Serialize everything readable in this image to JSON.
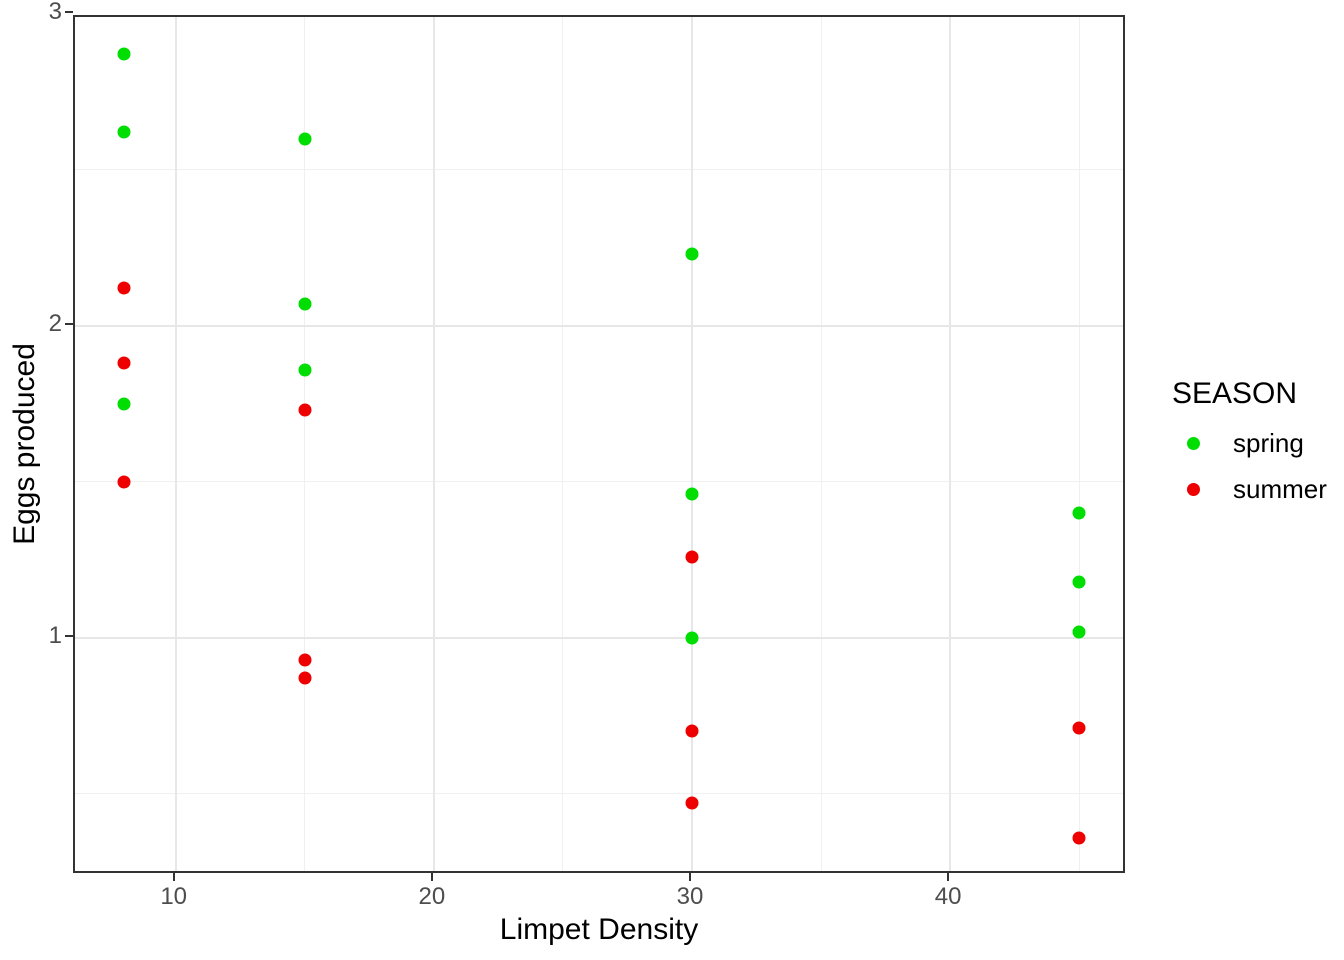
{
  "chart_data": {
    "type": "scatter",
    "title": "",
    "xlabel": "Limpet Density",
    "ylabel": "Eggs produced",
    "xlim": [
      6.1,
      46.85
    ],
    "ylim": [
      0.24,
      2.99
    ],
    "x_major_ticks": [
      10,
      20,
      30,
      40
    ],
    "x_minor_gridlines": [
      15,
      25,
      35,
      45
    ],
    "y_major_ticks": [
      1,
      2,
      3
    ],
    "y_minor_gridlines": [
      0.5,
      1.5,
      2.5
    ],
    "grid": true,
    "legend": {
      "title": "SEASON",
      "position": "right",
      "entries": [
        {
          "label": "spring",
          "color": "#00DD00"
        },
        {
          "label": "summer",
          "color": "#EE0000"
        }
      ]
    },
    "series": [
      {
        "name": "spring",
        "color": "#00DD00",
        "points": [
          [
            8,
            2.87
          ],
          [
            8,
            2.62
          ],
          [
            8,
            1.75
          ],
          [
            15,
            2.6
          ],
          [
            15,
            2.07
          ],
          [
            15,
            1.86
          ],
          [
            30,
            2.23
          ],
          [
            30,
            1.46
          ],
          [
            30,
            1.0
          ],
          [
            45,
            1.4
          ],
          [
            45,
            1.18
          ],
          [
            45,
            1.02
          ]
        ]
      },
      {
        "name": "summer",
        "color": "#EE0000",
        "points": [
          [
            8,
            2.12
          ],
          [
            8,
            1.88
          ],
          [
            8,
            1.5
          ],
          [
            15,
            1.73
          ],
          [
            15,
            0.93
          ],
          [
            15,
            0.87
          ],
          [
            30,
            1.26
          ],
          [
            30,
            0.7
          ],
          [
            30,
            0.47
          ],
          [
            45,
            0.71
          ],
          [
            45,
            0.36
          ]
        ]
      }
    ],
    "style": {
      "panel_border": "#333333",
      "grid_major": "#e7e7e7",
      "grid_minor": "#f0f0f0",
      "axis_text": "#4d4d4d",
      "background": "#ffffff"
    }
  }
}
